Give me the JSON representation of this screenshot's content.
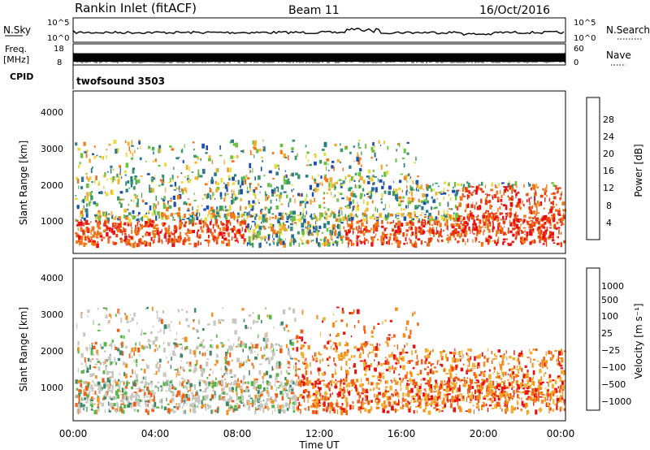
{
  "header": {
    "station": "Rankin Inlet (fitACF)",
    "beam": "Beam 11",
    "date": "16/Oct/2016"
  },
  "noise_panel": {
    "left_label": "N.Sky",
    "left_ticks": [
      "10^5",
      "10^0"
    ],
    "right_ticks": [
      "10^5",
      "10^0"
    ],
    "right_label": "N.Search"
  },
  "freq_panel": {
    "left_label_1": "Freq.",
    "left_label_2": "[MHz]",
    "left_ticks": [
      "18",
      "8"
    ],
    "right_ticks": [
      "60",
      "0"
    ],
    "right_label": "Nave"
  },
  "cpid_panel": {
    "label": "CPID",
    "program": "twofsound 3503"
  },
  "chart_data": [
    {
      "type": "heatmap",
      "name": "power",
      "ylabel": "Slant Range [km]",
      "yticks": [
        "4000",
        "3000",
        "2000",
        "1000"
      ],
      "colorbar_label": "Power [dB]",
      "colorbar_ticks": [
        "28",
        "24",
        "20",
        "16",
        "12",
        "8",
        "4"
      ],
      "colors": [
        "#1010ee",
        "#1a4fb0",
        "#2e7a8a",
        "#3c9a6a",
        "#6cc240",
        "#e8dc40",
        "#f2b030",
        "#f07818",
        "#ea4010",
        "#e81010"
      ]
    },
    {
      "type": "heatmap",
      "name": "velocity",
      "ylabel": "Slant Range [km]",
      "yticks": [
        "4000",
        "3000",
        "2000",
        "1000"
      ],
      "colorbar_label": "Velocity [m s⁻¹]",
      "colorbar_ticks": [
        "1000",
        "500",
        "100",
        "25",
        "−25",
        "−100",
        "−500",
        "−1000"
      ],
      "colors": [
        "#1a3fb0",
        "#2e6a90",
        "#3c8a6a",
        "#5ab84a",
        "#c8c8c0",
        "#c8c8c0",
        "#f2b030",
        "#f49020",
        "#ee6018",
        "#e81010"
      ]
    }
  ],
  "x_axis": {
    "ticks": [
      "00:00",
      "04:00",
      "08:00",
      "12:00",
      "16:00",
      "20:00",
      "00:00"
    ],
    "label": "Time UT"
  }
}
